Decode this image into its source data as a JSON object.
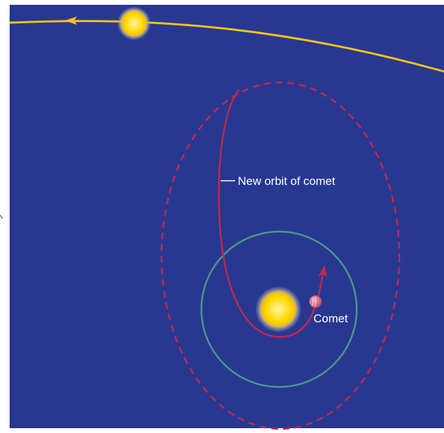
{
  "diagram": {
    "labels": {
      "new_orbit": "New orbit of comet",
      "comet": "Comet"
    },
    "colors": {
      "background": "#283891",
      "star_orbit": "#f7c21b",
      "old_orbit_dashed": "#c2284d",
      "new_orbit_path": "#c2284d",
      "sun_orbit_circle": "#4a9a8a",
      "sun": "#ffd700",
      "comet": "#e8889a",
      "label_text": "#ffffff"
    },
    "icons": {
      "star": "star-glow",
      "sun": "sun-glow",
      "comet": "comet-ball",
      "direction_arrow": "arrowhead"
    }
  }
}
